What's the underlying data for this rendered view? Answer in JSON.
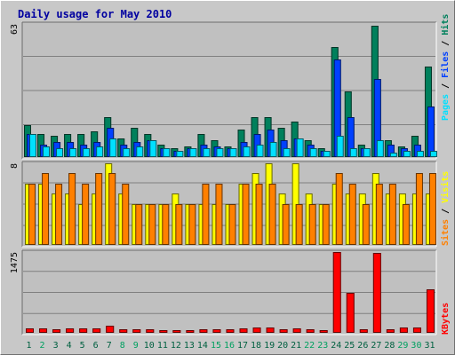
{
  "page": {
    "title": "Daily usage for May 2010"
  },
  "colors": {
    "hits": "#00805c",
    "files": "#0040ff",
    "pages": "#00e0ff",
    "visits": "#ffff00",
    "sites": "#ff8000",
    "kbytes": "#ff0000",
    "weekday_label": "#008040",
    "weekend_label": "#006030"
  },
  "chart_data": [
    {
      "type": "bar",
      "ylabel": "Pages / Files / Hits",
      "ymax_label": "63",
      "ylim": [
        0,
        63
      ],
      "categories": [
        "1",
        "2",
        "3",
        "4",
        "5",
        "6",
        "7",
        "8",
        "9",
        "10",
        "11",
        "12",
        "13",
        "14",
        "15",
        "16",
        "17",
        "18",
        "19",
        "20",
        "21",
        "22",
        "23",
        "24",
        "25",
        "26",
        "27",
        "28",
        "29",
        "30",
        "31"
      ],
      "series": [
        {
          "name": "Hits",
          "values": [
            15,
            11,
            10,
            11,
            11,
            12,
            19,
            9,
            14,
            11,
            6,
            4,
            5,
            11,
            8,
            5,
            13,
            19,
            19,
            14,
            17,
            8,
            4,
            52,
            31,
            6,
            62,
            8,
            5,
            10,
            43
          ]
        },
        {
          "name": "Files",
          "values": [
            11,
            6,
            7,
            7,
            6,
            7,
            14,
            6,
            7,
            8,
            4,
            3,
            4,
            6,
            5,
            4,
            7,
            11,
            13,
            8,
            9,
            6,
            3,
            46,
            19,
            4,
            37,
            6,
            4,
            6,
            24
          ]
        },
        {
          "name": "Pages",
          "values": [
            11,
            5,
            4,
            4,
            4,
            5,
            9,
            4,
            5,
            8,
            4,
            3,
            4,
            4,
            4,
            4,
            5,
            6,
            7,
            4,
            9,
            4,
            3,
            10,
            4,
            4,
            8,
            2,
            3,
            3,
            3
          ]
        }
      ]
    },
    {
      "type": "bar",
      "ylabel": "Sites / Visits",
      "ymax_label": "8",
      "ylim": [
        0,
        8
      ],
      "categories": [
        "1",
        "2",
        "3",
        "4",
        "5",
        "6",
        "7",
        "8",
        "9",
        "10",
        "11",
        "12",
        "13",
        "14",
        "15",
        "16",
        "17",
        "18",
        "19",
        "20",
        "21",
        "22",
        "23",
        "24",
        "25",
        "26",
        "27",
        "28",
        "29",
        "30",
        "31"
      ],
      "series": [
        {
          "name": "Visits",
          "values": [
            6,
            6,
            5,
            5,
            4,
            5,
            8,
            5,
            4,
            4,
            4,
            5,
            4,
            4,
            4,
            4,
            6,
            7,
            8,
            5,
            8,
            5,
            4,
            6,
            5,
            5,
            7,
            5,
            5,
            5,
            5
          ]
        },
        {
          "name": "Sites",
          "values": [
            6,
            7,
            6,
            7,
            6,
            7,
            7,
            6,
            4,
            4,
            4,
            4,
            4,
            6,
            6,
            4,
            6,
            6,
            6,
            4,
            4,
            4,
            4,
            7,
            6,
            4,
            6,
            6,
            4,
            7,
            7
          ]
        }
      ]
    },
    {
      "type": "bar",
      "ylabel": "KBytes",
      "ymax_label": "1475",
      "ylim": [
        0,
        1475
      ],
      "categories": [
        "1",
        "2",
        "3",
        "4",
        "5",
        "6",
        "7",
        "8",
        "9",
        "10",
        "11",
        "12",
        "13",
        "14",
        "15",
        "16",
        "17",
        "18",
        "19",
        "20",
        "21",
        "22",
        "23",
        "24",
        "25",
        "26",
        "27",
        "28",
        "29",
        "30",
        "31"
      ],
      "series": [
        {
          "name": "KBytes",
          "values": [
            75,
            80,
            70,
            75,
            80,
            75,
            130,
            60,
            65,
            60,
            55,
            55,
            50,
            70,
            65,
            60,
            75,
            95,
            90,
            70,
            85,
            60,
            55,
            1475,
            735,
            70,
            1465,
            70,
            95,
            105,
            800
          ]
        }
      ],
      "weekend_days": [
        2,
        8,
        9,
        15,
        16,
        22,
        23,
        29,
        30
      ]
    }
  ]
}
